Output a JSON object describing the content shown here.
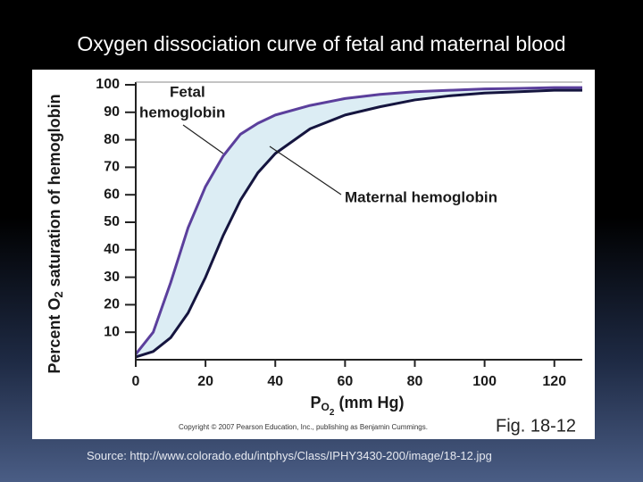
{
  "title": "Oxygen dissociation curve of fetal and maternal blood",
  "source": "Source: http://www.colorado.edu/intphys/Class/IPHY3430-200/image/18-12.jpg",
  "chart_data": {
    "type": "line",
    "ylabel": [
      "Percent O",
      "2",
      " saturation of hemoglobin"
    ],
    "xlabel": [
      "P",
      "O",
      "2",
      " (mm Hg)"
    ],
    "annotations": [
      [
        "Fetal",
        "hemoglobin"
      ],
      [
        "Maternal hemoglobin"
      ]
    ],
    "copyright": "Copyright © 2007 Pearson Education, Inc., publishing as Benjamin Cummings.",
    "figure_label": "Fig. 18-12",
    "x": [
      0,
      5,
      10,
      15,
      20,
      25,
      30,
      35,
      40,
      50,
      60,
      70,
      80,
      90,
      100,
      110,
      120,
      128
    ],
    "series": [
      {
        "name": "Fetal hemoglobin",
        "color": "#5b3f9c",
        "values": [
          2,
          10,
          28,
          48,
          63,
          74,
          82,
          86,
          89,
          92.5,
          95,
          96.5,
          97.5,
          98,
          98.5,
          98.7,
          99,
          99
        ]
      },
      {
        "name": "Maternal hemoglobin",
        "color": "#15153f",
        "values": [
          1,
          3,
          8,
          17,
          30,
          45,
          58,
          68,
          75,
          84,
          89,
          92,
          94.5,
          96,
          97,
          97.5,
          98,
          98
        ]
      }
    ],
    "fill_between_color": "#dcedf4",
    "xlim": [
      0,
      128
    ],
    "ylim": [
      0,
      100
    ],
    "xticks": [
      0,
      20,
      40,
      60,
      80,
      100,
      120
    ],
    "yticks": [
      10,
      20,
      30,
      40,
      50,
      60,
      70,
      80,
      90,
      100
    ]
  }
}
